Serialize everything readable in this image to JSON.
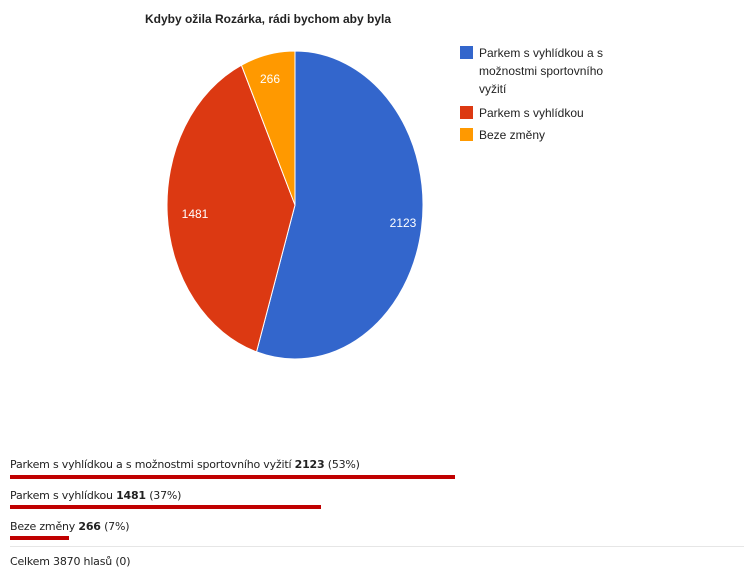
{
  "chart_data": {
    "type": "pie",
    "title": "Kdyby ožila Rozárka, rádi bychom aby byla",
    "categories": [
      "Parkem s vyhlídkou a s možnostmi sportovního vyžití",
      "Parkem s vyhlídkou",
      "Beze změny"
    ],
    "values": [
      2123,
      1481,
      266
    ],
    "colors": [
      "#3366cc",
      "#dc3912",
      "#ff9900"
    ],
    "slice_labels": [
      "2123",
      "1481",
      "266"
    ],
    "legend_position": "right",
    "legend_lines": [
      [
        "Parkem s vyhlídkou a s",
        "možnostmi sportovního",
        "vyžití"
      ],
      [
        "Parkem s vyhlídkou"
      ],
      [
        "Beze změny"
      ]
    ]
  },
  "results": {
    "rows": [
      {
        "label": "Parkem s vyhlídkou a s možnostmi sportovního vyžití",
        "count": "2123",
        "percent": "(53%)",
        "fraction": 0.53
      },
      {
        "label": "Parkem s vyhlídkou",
        "count": "1481",
        "percent": "(37%)",
        "fraction": 0.37
      },
      {
        "label": "Beze změny",
        "count": "266",
        "percent": "(7%)",
        "fraction": 0.07
      }
    ],
    "bar_color": "#c00000",
    "total": "Celkem 3870 hlasů (0)"
  }
}
